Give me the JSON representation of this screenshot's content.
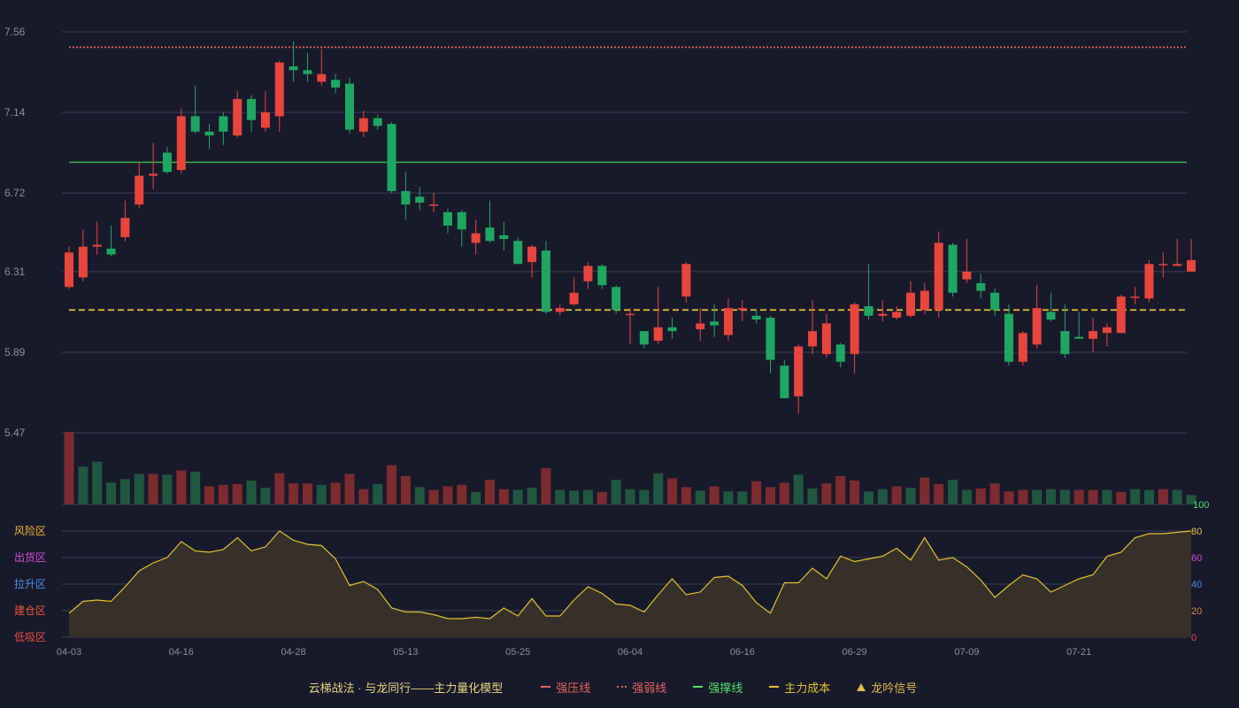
{
  "chart_data": {
    "type": "candlestick",
    "x_labels": [
      "04-03",
      "04-16",
      "04-28",
      "05-13",
      "05-25",
      "06-04",
      "06-16",
      "06-29",
      "07-09",
      "07-21"
    ],
    "label_indices": [
      0,
      8,
      16,
      24,
      32,
      40,
      48,
      56,
      64,
      72
    ],
    "y_ticks": [
      "5.47",
      "5.89",
      "6.31",
      "6.72",
      "7.14",
      "7.56"
    ],
    "ylim": [
      5.47,
      7.56
    ],
    "reference_lines": [
      {
        "key": "strong_pressure",
        "value": 7.48,
        "style": "dotted",
        "color": "#e4635d"
      },
      {
        "key": "strong_support",
        "value": 6.88,
        "style": "solid",
        "color": "#37b24d"
      },
      {
        "key": "main_cost",
        "value": 6.11,
        "style": "dashed",
        "color": "#e6c02b"
      }
    ],
    "candles": [
      [
        6.23,
        6.41,
        6.44,
        6.22
      ],
      [
        6.28,
        6.44,
        6.53,
        6.26
      ],
      [
        6.44,
        6.45,
        6.57,
        6.4
      ],
      [
        6.43,
        6.4,
        6.55,
        6.39
      ],
      [
        6.49,
        6.59,
        6.68,
        6.47
      ],
      [
        6.66,
        6.81,
        6.88,
        6.64
      ],
      [
        6.81,
        6.82,
        6.98,
        6.74
      ],
      [
        6.93,
        6.83,
        6.96,
        6.82
      ],
      [
        6.84,
        7.12,
        7.16,
        6.82
      ],
      [
        7.12,
        7.04,
        7.28,
        7.03
      ],
      [
        7.04,
        7.02,
        7.08,
        6.95
      ],
      [
        7.12,
        7.04,
        7.14,
        6.97
      ],
      [
        7.02,
        7.21,
        7.25,
        7.01
      ],
      [
        7.21,
        7.1,
        7.23,
        7.04
      ],
      [
        7.06,
        7.14,
        7.25,
        7.04
      ],
      [
        7.12,
        7.4,
        7.41,
        7.04
      ],
      [
        7.38,
        7.36,
        7.51,
        7.3
      ],
      [
        7.36,
        7.34,
        7.45,
        7.3
      ],
      [
        7.3,
        7.34,
        7.47,
        7.28
      ],
      [
        7.31,
        7.27,
        7.34,
        7.24
      ],
      [
        7.29,
        7.05,
        7.32,
        7.03
      ],
      [
        7.04,
        7.11,
        7.15,
        7.01
      ],
      [
        7.11,
        7.07,
        7.13,
        7.05
      ],
      [
        7.08,
        6.73,
        7.09,
        6.72
      ],
      [
        6.73,
        6.66,
        6.83,
        6.58
      ],
      [
        6.7,
        6.67,
        6.75,
        6.63
      ],
      [
        6.66,
        6.66,
        6.72,
        6.62
      ],
      [
        6.62,
        6.55,
        6.64,
        6.51
      ],
      [
        6.62,
        6.53,
        6.63,
        6.44
      ],
      [
        6.46,
        6.51,
        6.58,
        6.4
      ],
      [
        6.54,
        6.47,
        6.68,
        6.46
      ],
      [
        6.5,
        6.48,
        6.57,
        6.42
      ],
      [
        6.47,
        6.35,
        6.49,
        6.35
      ],
      [
        6.36,
        6.44,
        6.45,
        6.28
      ],
      [
        6.42,
        6.1,
        6.47,
        6.09
      ],
      [
        6.1,
        6.12,
        6.14,
        6.08
      ],
      [
        6.14,
        6.2,
        6.28,
        6.13
      ],
      [
        6.26,
        6.34,
        6.36,
        6.22
      ],
      [
        6.34,
        6.24,
        6.35,
        6.22
      ],
      [
        6.23,
        6.11,
        6.24,
        6.09
      ],
      [
        6.09,
        6.09,
        6.12,
        5.93
      ],
      [
        6.0,
        5.93,
        6.0,
        5.91
      ],
      [
        5.95,
        6.02,
        6.23,
        5.93
      ],
      [
        6.02,
        6.0,
        6.07,
        5.96
      ],
      [
        6.18,
        6.35,
        6.36,
        6.15
      ],
      [
        6.01,
        6.04,
        6.12,
        5.95
      ],
      [
        6.05,
        6.03,
        6.14,
        5.97
      ],
      [
        5.98,
        6.12,
        6.17,
        5.95
      ],
      [
        6.11,
        6.12,
        6.16,
        6.05
      ],
      [
        6.08,
        6.06,
        6.11,
        6.04
      ],
      [
        6.07,
        5.85,
        6.08,
        5.78
      ],
      [
        5.82,
        5.65,
        5.85,
        5.65
      ],
      [
        5.66,
        5.92,
        5.93,
        5.57
      ],
      [
        5.92,
        6.0,
        6.16,
        5.88
      ],
      [
        5.88,
        6.04,
        6.09,
        5.86
      ],
      [
        5.93,
        5.84,
        5.94,
        5.81
      ],
      [
        5.88,
        6.14,
        6.15,
        5.78
      ],
      [
        6.13,
        6.08,
        6.35,
        6.06
      ],
      [
        6.08,
        6.09,
        6.16,
        6.05
      ],
      [
        6.07,
        6.1,
        6.13,
        6.06
      ],
      [
        6.08,
        6.2,
        6.26,
        6.07
      ],
      [
        6.11,
        6.21,
        6.25,
        6.09
      ],
      [
        6.11,
        6.46,
        6.52,
        6.07
      ],
      [
        6.45,
        6.2,
        6.46,
        6.18
      ],
      [
        6.27,
        6.31,
        6.48,
        6.25
      ],
      [
        6.25,
        6.21,
        6.3,
        6.17
      ],
      [
        6.2,
        6.11,
        6.22,
        6.08
      ],
      [
        6.09,
        5.84,
        6.14,
        5.82
      ],
      [
        5.84,
        5.99,
        6.0,
        5.82
      ],
      [
        5.93,
        6.12,
        6.24,
        5.91
      ],
      [
        6.1,
        6.06,
        6.2,
        6.05
      ],
      [
        6.0,
        5.88,
        6.14,
        5.86
      ],
      [
        5.97,
        5.96,
        6.1,
        5.96
      ],
      [
        5.96,
        6.0,
        6.07,
        5.89
      ],
      [
        5.99,
        6.02,
        6.04,
        5.92
      ],
      [
        5.99,
        6.18,
        6.19,
        5.99
      ],
      [
        6.18,
        6.18,
        6.23,
        6.14
      ],
      [
        6.17,
        6.35,
        6.37,
        6.15
      ],
      [
        6.35,
        6.35,
        6.41,
        6.28
      ],
      [
        6.34,
        6.35,
        6.48,
        6.34
      ],
      [
        6.31,
        6.37,
        6.48,
        6.31
      ]
    ],
    "volume": [
      100,
      52,
      59,
      30,
      35,
      42,
      42,
      41,
      47,
      45,
      25,
      27,
      28,
      33,
      23,
      43,
      29,
      29,
      27,
      30,
      42,
      21,
      28,
      54,
      39,
      24,
      20,
      25,
      27,
      17,
      34,
      21,
      20,
      23,
      50,
      20,
      19,
      20,
      17,
      34,
      21,
      20,
      43,
      36,
      24,
      19,
      25,
      18,
      18,
      32,
      24,
      30,
      41,
      22,
      29,
      39,
      33,
      18,
      21,
      25,
      23,
      37,
      28,
      34,
      20,
      22,
      29,
      18,
      20,
      20,
      21,
      20,
      20,
      20,
      20,
      17,
      21,
      20,
      21,
      20,
      13
    ],
    "volume_colors": [
      "up",
      "down",
      "down",
      "down",
      "down",
      "down",
      "up",
      "down",
      "up",
      "down",
      "up",
      "up",
      "up",
      "down",
      "down",
      "up",
      "up",
      "up",
      "down",
      "up",
      "up",
      "up",
      "down",
      "up",
      "up",
      "down",
      "up",
      "up",
      "up",
      "down",
      "up",
      "up",
      "down",
      "down",
      "up",
      "down",
      "down",
      "down",
      "up",
      "down",
      "down",
      "down",
      "down",
      "up",
      "up",
      "down",
      "up",
      "down",
      "down",
      "up",
      "up",
      "up",
      "down",
      "down",
      "up",
      "up",
      "up",
      "down",
      "down",
      "up",
      "down",
      "up",
      "up",
      "down",
      "down",
      "up",
      "up",
      "up",
      "up",
      "down",
      "down",
      "down",
      "up",
      "up",
      "down",
      "up",
      "down",
      "down",
      "up",
      "down",
      "down"
    ],
    "volume_top_label": "100",
    "indicator": {
      "ylim": [
        0,
        80
      ],
      "right_ticks": [
        {
          "value": 80,
          "label": "80",
          "color": "#f0c040"
        },
        {
          "value": 60,
          "label": "60",
          "color": "#d94ad9"
        },
        {
          "value": 40,
          "label": "40",
          "color": "#4a8fe8"
        },
        {
          "value": 20,
          "label": "20",
          "color": "#e8873a"
        },
        {
          "value": 0,
          "label": "0",
          "color": "#e84a4a"
        }
      ],
      "zones": [
        {
          "label": "风险区",
          "color": "#f0b030"
        },
        {
          "label": "出货区",
          "color": "#d94ad9"
        },
        {
          "label": "拉升区",
          "color": "#4a8fe8"
        },
        {
          "label": "建仓区",
          "color": "#e8553a"
        },
        {
          "label": "低吸区",
          "color": "#e84a4a"
        }
      ],
      "values": [
        18,
        27,
        28,
        27,
        38,
        50,
        56,
        60,
        72,
        65,
        64,
        66,
        75,
        65,
        68,
        80,
        73,
        70,
        69,
        59,
        39,
        42,
        36,
        22,
        19,
        19,
        17,
        14,
        14,
        15,
        14,
        22,
        16,
        29,
        16,
        16,
        28,
        38,
        33,
        25,
        24,
        19,
        32,
        44,
        32,
        34,
        45,
        46,
        39,
        26,
        18,
        41,
        41,
        52,
        44,
        61,
        57,
        59,
        61,
        67,
        58,
        75,
        58,
        60,
        53,
        43,
        30,
        39,
        47,
        44,
        34,
        39,
        44,
        47,
        61,
        64,
        75,
        78,
        78,
        79,
        80
      ]
    }
  },
  "legend": {
    "title": "云梯战法 · 与龙同行——主力量化模型",
    "items": [
      {
        "label": "强压线",
        "color": "#e4635d",
        "style": "solid"
      },
      {
        "label": "强弱线",
        "color": "#e4635d",
        "style": "dotted"
      },
      {
        "label": "强撑线",
        "color": "#4ee06b",
        "style": "solid"
      },
      {
        "label": "主力成本",
        "color": "#e6c02b",
        "style": "dashed"
      },
      {
        "label": "龙吟信号",
        "color": "#e8b84a",
        "style": "triangle"
      }
    ]
  },
  "colors": {
    "up": "#e8453c",
    "down": "#1ea761",
    "up_volume": "#7d2b2e",
    "down_volume": "#1f5740",
    "grid": "#3c3f55",
    "axis_text": "#8a8d9e",
    "indicator_line": "#e6c02b",
    "indicator_fill": "#3c3528"
  }
}
